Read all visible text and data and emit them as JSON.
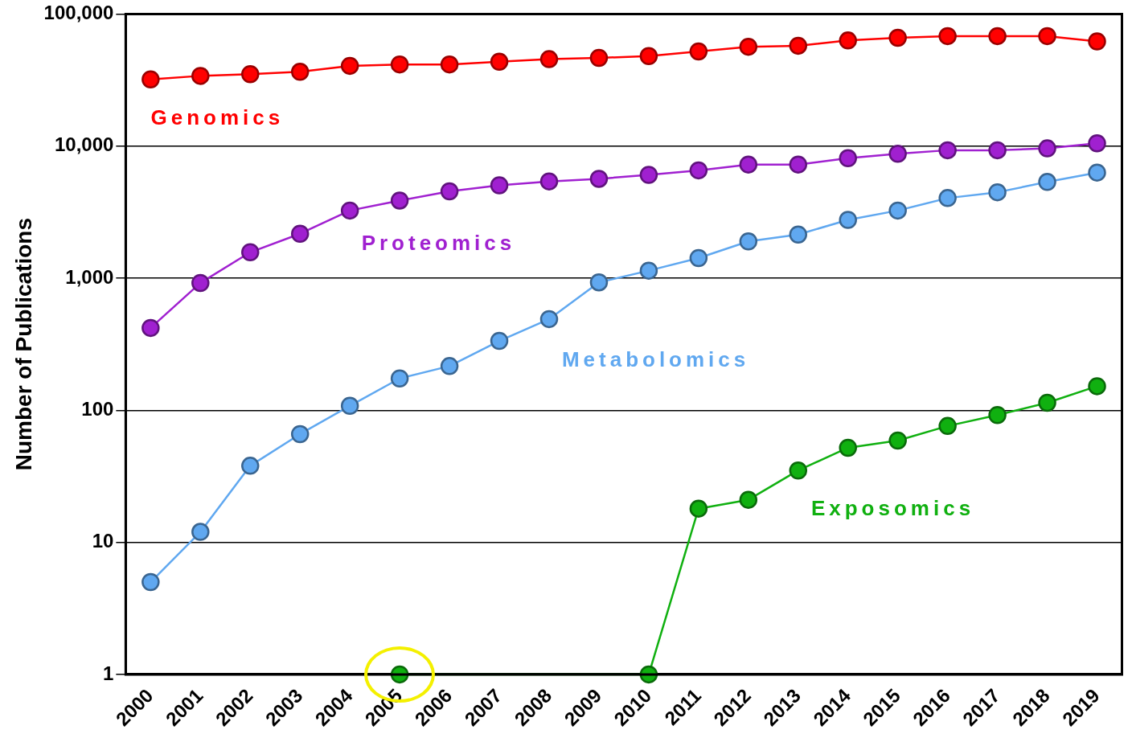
{
  "chart_data": {
    "type": "line",
    "ylabel": "Number of Publications",
    "categories": [
      "2000",
      "2001",
      "2002",
      "2003",
      "2004",
      "2005",
      "2006",
      "2007",
      "2008",
      "2009",
      "2010",
      "2011",
      "2012",
      "2013",
      "2014",
      "2015",
      "2016",
      "2017",
      "2018",
      "2019"
    ],
    "series": [
      {
        "name": "Genomics",
        "color": "#ff0000",
        "values": [
          32000,
          34000,
          35000,
          36500,
          40500,
          41500,
          41500,
          43500,
          45500,
          46500,
          48000,
          52000,
          56500,
          57500,
          63000,
          66000,
          68000,
          68000,
          68000,
          62000
        ]
      },
      {
        "name": "Proteomics",
        "color": "#a020d0",
        "values": [
          420,
          920,
          1570,
          2170,
          3250,
          3870,
          4540,
          5050,
          5400,
          5650,
          6050,
          6550,
          7250,
          7250,
          8100,
          8750,
          9300,
          9300,
          9600,
          10500
        ]
      },
      {
        "name": "Metabolomics",
        "color": "#60a8f0",
        "values": [
          5,
          12,
          38,
          66,
          108,
          174,
          216,
          335,
          490,
          930,
          1140,
          1420,
          1900,
          2140,
          2760,
          3250,
          4040,
          4470,
          5350,
          6300
        ]
      },
      {
        "name": "Exposomics",
        "color": "#10b010",
        "values": [
          null,
          null,
          null,
          null,
          null,
          1,
          null,
          null,
          null,
          null,
          1,
          18,
          21,
          35,
          52,
          59,
          76,
          92,
          114,
          152
        ]
      }
    ],
    "log": "y",
    "ylim": [
      1,
      100000
    ],
    "yticks": [
      {
        "value": 1,
        "label": "1"
      },
      {
        "value": 10,
        "label": "10"
      },
      {
        "value": 100,
        "label": "100"
      },
      {
        "value": 1000,
        "label": "1,000"
      },
      {
        "value": 10000,
        "label": "10,000"
      },
      {
        "value": 100000,
        "label": "100,000"
      }
    ],
    "grid": "y",
    "marker": "circle",
    "line_style": "solid",
    "legend": false
  }
}
